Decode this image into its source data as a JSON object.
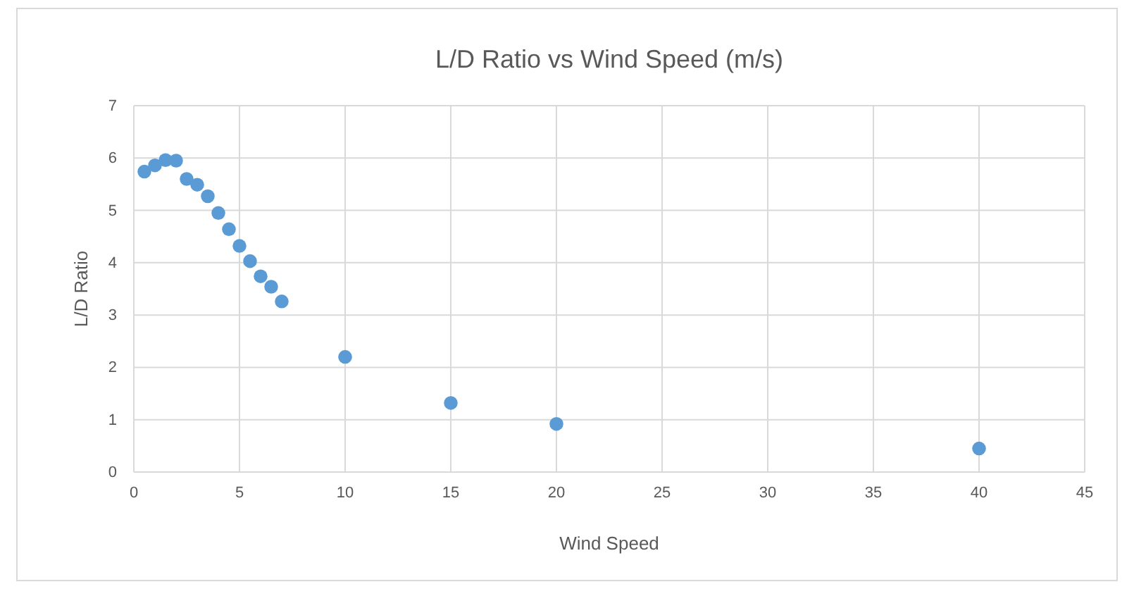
{
  "chart_data": {
    "type": "scatter",
    "title": "L/D Ratio vs Wind Speed (m/s)",
    "xlabel": "Wind Speed",
    "ylabel": "L/D Ratio",
    "x": [
      0.5,
      1,
      1.5,
      2,
      2.5,
      3,
      3.5,
      4,
      4.5,
      5,
      5.5,
      6,
      6.5,
      7,
      10,
      15,
      20,
      40
    ],
    "series": [
      {
        "color": "#5b9bd5",
        "values": [
          5.74,
          5.86,
          5.96,
          5.95,
          5.6,
          5.49,
          5.27,
          4.95,
          4.64,
          4.32,
          4.03,
          3.74,
          3.54,
          3.26,
          2.2,
          1.32,
          0.92,
          0.45
        ]
      }
    ],
    "xlim": [
      0,
      45
    ],
    "xticks": [
      0,
      5,
      10,
      15,
      20,
      25,
      30,
      35,
      40,
      45
    ],
    "ylim": [
      0,
      7
    ],
    "yticks": [
      0,
      1,
      2,
      3,
      4,
      5,
      6,
      7
    ],
    "grid": true,
    "marker": "circle",
    "legend": false
  }
}
